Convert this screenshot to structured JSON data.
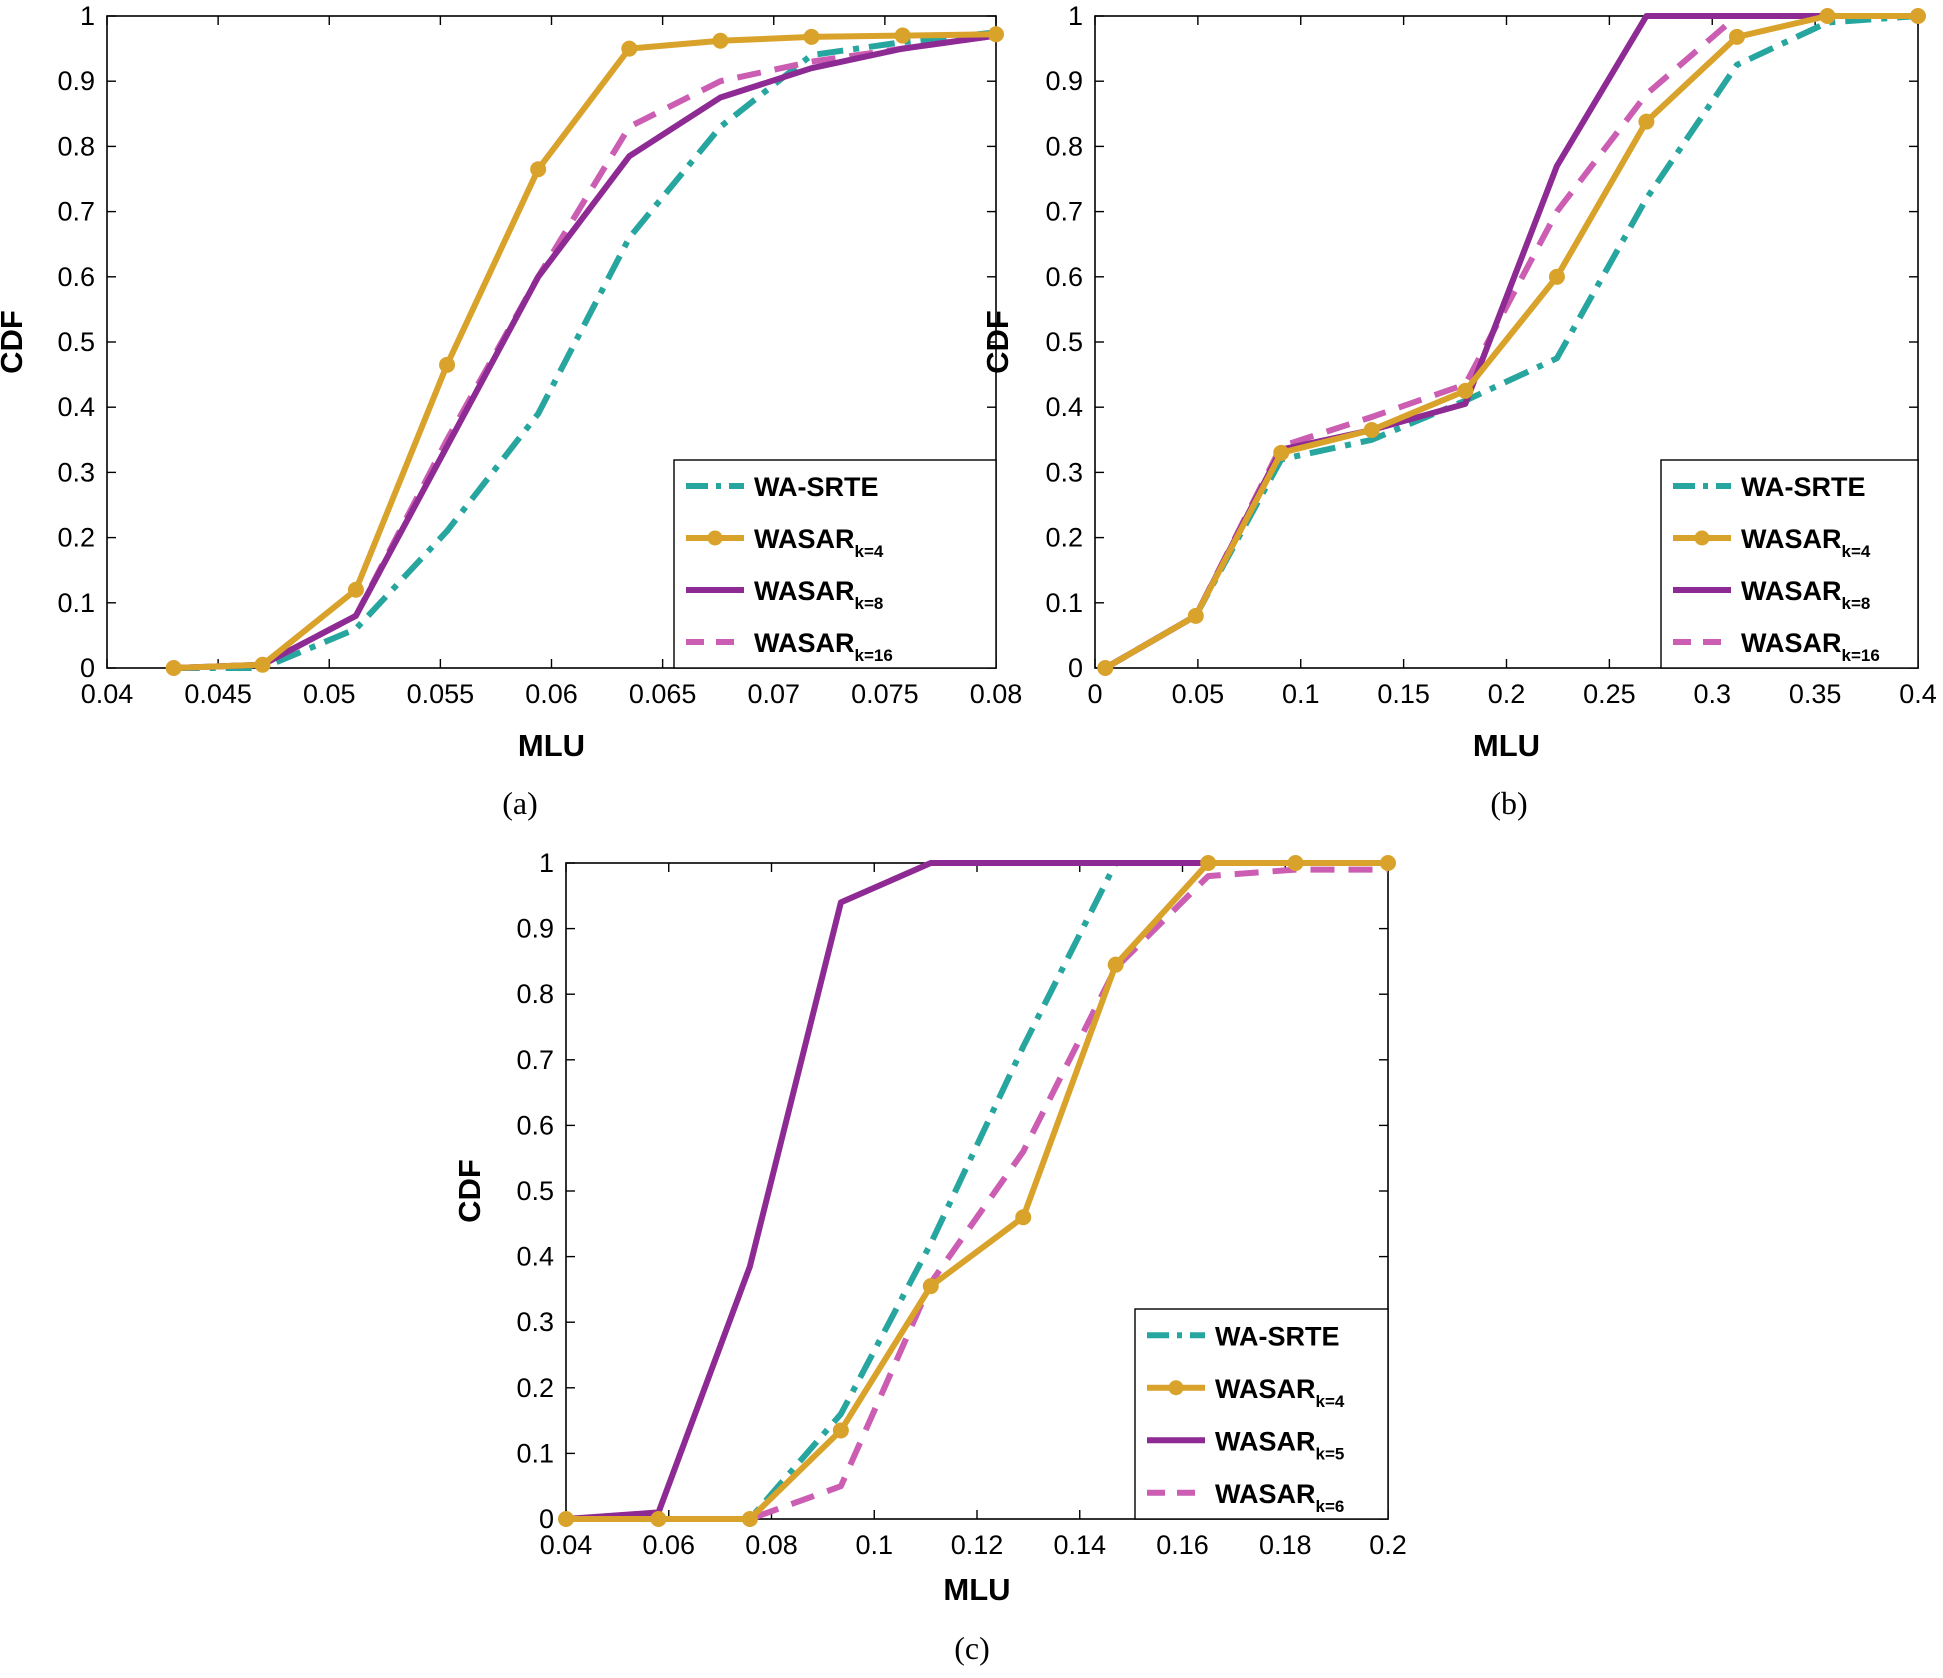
{
  "colors": {
    "WA-SRTE": "#27A59F",
    "k4": "#D9A22A",
    "k8": "#8E2A93",
    "k16": "#CB5DB3"
  },
  "chart_data": [
    {
      "type": "line",
      "caption": "(a)",
      "xlabel": "MLU",
      "ylabel": "CDF",
      "xlim": [
        0.04,
        0.08
      ],
      "ylim": [
        0,
        1
      ],
      "xticks": [
        "0.04",
        "0.045",
        "0.05",
        "0.055",
        "0.06",
        "0.065",
        "0.07",
        "0.075",
        "0.08"
      ],
      "yticks": [
        "0",
        "0.1",
        "0.2",
        "0.3",
        "0.4",
        "0.5",
        "0.6",
        "0.7",
        "0.8",
        "0.9",
        "1"
      ],
      "legend_position": "bottom-right",
      "series": [
        {
          "name": "WA-SRTE",
          "style": "dashdot",
          "color_key": "WA-SRTE",
          "x": [
            0.043,
            0.047,
            0.0512,
            0.0553,
            0.0594,
            0.0635,
            0.0676,
            0.0717,
            0.0758,
            0.08
          ],
          "y": [
            0,
            0,
            0.06,
            0.21,
            0.39,
            0.66,
            0.83,
            0.94,
            0.96,
            0.975
          ]
        },
        {
          "name": "WASAR",
          "sub": "k=4",
          "style": "solid-marker",
          "color_key": "k4",
          "x": [
            0.043,
            0.047,
            0.0512,
            0.0553,
            0.0594,
            0.0635,
            0.0676,
            0.0717,
            0.0758,
            0.08
          ],
          "y": [
            0,
            0.005,
            0.12,
            0.465,
            0.765,
            0.95,
            0.962,
            0.968,
            0.97,
            0.972
          ]
        },
        {
          "name": "WASAR",
          "sub": "k=8",
          "style": "solid",
          "color_key": "k8",
          "x": [
            0.043,
            0.047,
            0.0512,
            0.0553,
            0.0594,
            0.0635,
            0.0676,
            0.0717,
            0.0758,
            0.08
          ],
          "y": [
            0,
            0.005,
            0.08,
            0.34,
            0.6,
            0.785,
            0.875,
            0.92,
            0.95,
            0.97
          ]
        },
        {
          "name": "WASAR",
          "sub": "k=16",
          "style": "dashed",
          "color_key": "k16",
          "x": [
            0.043,
            0.047,
            0.0512,
            0.0553,
            0.0594,
            0.0635,
            0.0676,
            0.0717,
            0.0758,
            0.08
          ],
          "y": [
            0,
            0.005,
            0.08,
            0.35,
            0.6,
            0.83,
            0.9,
            0.93,
            0.95,
            0.97
          ]
        }
      ]
    },
    {
      "type": "line",
      "caption": "(b)",
      "xlabel": "MLU",
      "ylabel": "CDF",
      "xlim": [
        0,
        0.4
      ],
      "ylim": [
        0,
        1
      ],
      "xticks": [
        "0",
        "0.05",
        "0.1",
        "0.15",
        "0.2",
        "0.25",
        "0.3",
        "0.35",
        "0.4"
      ],
      "yticks": [
        "0",
        "0.1",
        "0.2",
        "0.3",
        "0.4",
        "0.5",
        "0.6",
        "0.7",
        "0.8",
        "0.9",
        "1"
      ],
      "legend_position": "bottom-right",
      "series": [
        {
          "name": "WA-SRTE",
          "style": "dashdot",
          "color_key": "WA-SRTE",
          "x": [
            0.005,
            0.049,
            0.0905,
            0.1345,
            0.18,
            0.2245,
            0.268,
            0.312,
            0.356,
            0.4
          ],
          "y": [
            0,
            0.08,
            0.32,
            0.35,
            0.41,
            0.475,
            0.72,
            0.925,
            0.99,
            1
          ]
        },
        {
          "name": "WASAR",
          "sub": "k=4",
          "style": "solid-marker",
          "color_key": "k4",
          "x": [
            0.005,
            0.049,
            0.0905,
            0.1345,
            0.18,
            0.2245,
            0.268,
            0.312,
            0.356,
            0.4
          ],
          "y": [
            0,
            0.08,
            0.33,
            0.365,
            0.425,
            0.6,
            0.838,
            0.968,
            1,
            1
          ]
        },
        {
          "name": "WASAR",
          "sub": "k=8",
          "style": "solid",
          "color_key": "k8",
          "x": [
            0.005,
            0.049,
            0.0905,
            0.1345,
            0.18,
            0.2245,
            0.268,
            0.312,
            0.356,
            0.4
          ],
          "y": [
            0,
            0.08,
            0.335,
            0.365,
            0.405,
            0.77,
            1,
            1,
            1,
            1
          ]
        },
        {
          "name": "WASAR",
          "sub": "k=16",
          "style": "dashed",
          "color_key": "k16",
          "x": [
            0.005,
            0.049,
            0.0905,
            0.1345,
            0.18,
            0.2245,
            0.268,
            0.312,
            0.356,
            0.4
          ],
          "y": [
            0,
            0.08,
            0.34,
            0.385,
            0.435,
            0.7,
            0.88,
            1,
            1,
            1
          ]
        }
      ]
    },
    {
      "type": "line",
      "caption": "(c)",
      "xlabel": "MLU",
      "ylabel": "CDF",
      "xlim": [
        0.04,
        0.2
      ],
      "ylim": [
        0,
        1
      ],
      "xticks": [
        "0.04",
        "0.06",
        "0.08",
        "0.1",
        "0.12",
        "0.14",
        "0.16",
        "0.18",
        "0.2"
      ],
      "yticks": [
        "0",
        "0.1",
        "0.2",
        "0.3",
        "0.4",
        "0.5",
        "0.6",
        "0.7",
        "0.8",
        "0.9",
        "1"
      ],
      "legend_position": "bottom-right",
      "series": [
        {
          "name": "WA-SRTE",
          "style": "dashdot",
          "color_key": "WA-SRTE",
          "x": [
            0.04,
            0.058,
            0.0758,
            0.0935,
            0.111,
            0.129,
            0.147,
            0.165,
            0.182,
            0.2
          ],
          "y": [
            0,
            0,
            0,
            0.16,
            0.42,
            0.72,
            1,
            1,
            1,
            1
          ]
        },
        {
          "name": "WASAR",
          "sub": "k=4",
          "style": "solid-marker",
          "color_key": "k4",
          "x": [
            0.04,
            0.058,
            0.0758,
            0.0935,
            0.111,
            0.129,
            0.147,
            0.165,
            0.182,
            0.2
          ],
          "y": [
            0,
            0,
            0,
            0.135,
            0.355,
            0.46,
            0.845,
            1,
            1,
            1
          ]
        },
        {
          "name": "WASAR",
          "sub": "k=5",
          "style": "solid",
          "color_key": "k8",
          "x": [
            0.04,
            0.058,
            0.0758,
            0.0935,
            0.111,
            0.129,
            0.147,
            0.165,
            0.182,
            0.2
          ],
          "y": [
            0,
            0.01,
            0.385,
            0.94,
            1,
            1,
            1,
            1,
            1,
            1
          ]
        },
        {
          "name": "WASAR",
          "sub": "k=6",
          "style": "dashed",
          "color_key": "k16",
          "x": [
            0.04,
            0.058,
            0.0758,
            0.0935,
            0.111,
            0.129,
            0.147,
            0.165,
            0.182,
            0.2
          ],
          "y": [
            0,
            0,
            0,
            0.05,
            0.36,
            0.56,
            0.84,
            0.98,
            0.99,
            0.99
          ]
        }
      ]
    }
  ]
}
